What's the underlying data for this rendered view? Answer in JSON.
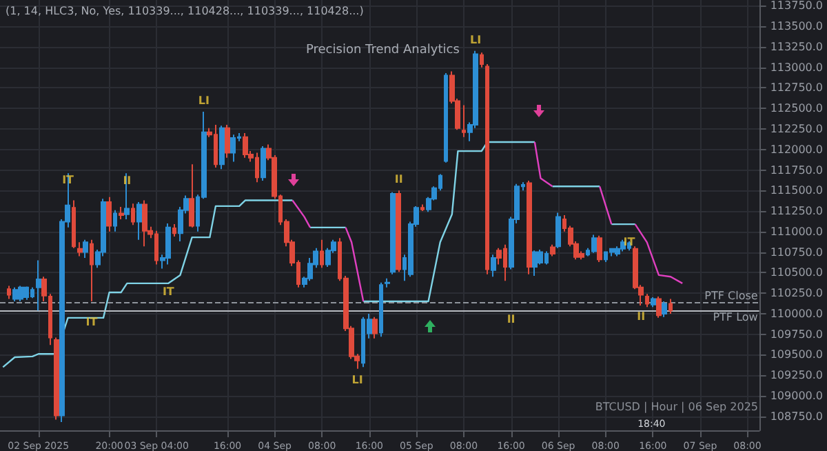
{
  "chart_data": {
    "type": "candlestick",
    "subtitle": "Precision Trend Analytics",
    "x": [
      "2025-09-02T03:00",
      "2025-09-02T04:00",
      "2025-09-02T05:00",
      "2025-09-02T06:00",
      "2025-09-02T07:00",
      "2025-09-02T08:00",
      "2025-09-02T09:00",
      "2025-09-02T10:00",
      "2025-09-02T11:00",
      "2025-09-02T12:00",
      "2025-09-02T13:00",
      "2025-09-02T14:00",
      "2025-09-02T15:00",
      "2025-09-02T16:00",
      "2025-09-02T17:00",
      "2025-09-02T18:00",
      "2025-09-02T19:00",
      "2025-09-02T20:00",
      "2025-09-02T21:00",
      "2025-09-02T22:00",
      "2025-09-02T23:00",
      "2025-09-03T00:00",
      "2025-09-03T01:00",
      "2025-09-03T02:00",
      "2025-09-03T03:00",
      "2025-09-03T04:00",
      "2025-09-03T05:00",
      "2025-09-03T06:00",
      "2025-09-03T07:00",
      "2025-09-03T08:00",
      "2025-09-03T09:00",
      "2025-09-03T10:00",
      "2025-09-03T11:00",
      "2025-09-03T12:00",
      "2025-09-03T13:00",
      "2025-09-03T14:00",
      "2025-09-03T15:00",
      "2025-09-03T16:00",
      "2025-09-03T17:00",
      "2025-09-03T18:00",
      "2025-09-03T19:00",
      "2025-09-03T20:00",
      "2025-09-03T21:00",
      "2025-09-03T22:00",
      "2025-09-03T23:00",
      "2025-09-04T00:00",
      "2025-09-04T01:00",
      "2025-09-04T02:00",
      "2025-09-04T03:00",
      "2025-09-04T04:00",
      "2025-09-04T05:00",
      "2025-09-04T06:00",
      "2025-09-04T07:00",
      "2025-09-04T08:00",
      "2025-09-04T09:00",
      "2025-09-04T10:00",
      "2025-09-04T11:00",
      "2025-09-04T12:00",
      "2025-09-04T13:00",
      "2025-09-04T14:00",
      "2025-09-04T15:00",
      "2025-09-04T16:00",
      "2025-09-04T17:00",
      "2025-09-04T18:00",
      "2025-09-04T19:00",
      "2025-09-04T20:00",
      "2025-09-04T21:00",
      "2025-09-04T22:00",
      "2025-09-04T23:00",
      "2025-09-05T00:00",
      "2025-09-05T01:00",
      "2025-09-05T02:00",
      "2025-09-05T03:00",
      "2025-09-05T04:00",
      "2025-09-05T05:00",
      "2025-09-05T06:00",
      "2025-09-05T07:00",
      "2025-09-05T08:00",
      "2025-09-05T09:00",
      "2025-09-05T10:00",
      "2025-09-05T11:00",
      "2025-09-05T12:00",
      "2025-09-05T13:00",
      "2025-09-05T14:00",
      "2025-09-05T15:00",
      "2025-09-05T16:00",
      "2025-09-05T17:00",
      "2025-09-05T18:00",
      "2025-09-05T19:00",
      "2025-09-05T20:00",
      "2025-09-05T21:00",
      "2025-09-05T22:00",
      "2025-09-05T23:00",
      "2025-09-06T00:00",
      "2025-09-06T01:00",
      "2025-09-06T02:00",
      "2025-09-06T03:00",
      "2025-09-06T04:00",
      "2025-09-06T05:00",
      "2025-09-06T06:00",
      "2025-09-06T07:00",
      "2025-09-06T08:00",
      "2025-09-06T09:00",
      "2025-09-06T10:00",
      "2025-09-06T11:00",
      "2025-09-06T12:00",
      "2025-09-06T13:00",
      "2025-09-06T14:00",
      "2025-09-06T15:00",
      "2025-09-06T16:00",
      "2025-09-06T17:00",
      "2025-09-06T18:00",
      "2025-09-06T19:00"
    ],
    "ohlc": [
      [
        110300,
        110340,
        110180,
        110230
      ],
      [
        110180,
        110320,
        110150,
        110290
      ],
      [
        110180,
        110340,
        110150,
        110320
      ],
      [
        110200,
        110330,
        110170,
        110320
      ],
      [
        110210,
        110320,
        110190,
        110290
      ],
      [
        110320,
        110650,
        110040,
        110420
      ],
      [
        110420,
        110450,
        110150,
        110220
      ],
      [
        110210,
        110240,
        109620,
        109710
      ],
      [
        109680,
        109710,
        108710,
        108760
      ],
      [
        108760,
        111150,
        108680,
        111120
      ],
      [
        111120,
        111710,
        111050,
        111320
      ],
      [
        111290,
        111380,
        110800,
        110820
      ],
      [
        110790,
        110870,
        110700,
        110750
      ],
      [
        110750,
        110900,
        110680,
        110870
      ],
      [
        110850,
        110900,
        110150,
        110600
      ],
      [
        110600,
        110780,
        110560,
        110750
      ],
      [
        110750,
        111400,
        110700,
        111360
      ],
      [
        111360,
        111420,
        111000,
        111070
      ],
      [
        111070,
        111260,
        111000,
        111220
      ],
      [
        111220,
        111300,
        111150,
        111200
      ],
      [
        111210,
        111710,
        111150,
        111280
      ],
      [
        111280,
        111340,
        111080,
        111120
      ],
      [
        111120,
        111360,
        110900,
        111330
      ],
      [
        111330,
        111380,
        110820,
        111010
      ],
      [
        111010,
        111060,
        110920,
        110970
      ],
      [
        110970,
        111010,
        110600,
        110650
      ],
      [
        110650,
        110720,
        110550,
        110680
      ],
      [
        110680,
        111100,
        110600,
        111050
      ],
      [
        111040,
        111090,
        110940,
        110980
      ],
      [
        110980,
        111300,
        110880,
        111260
      ],
      [
        111260,
        111440,
        111220,
        111400
      ],
      [
        111400,
        111820,
        111050,
        111070
      ],
      [
        111070,
        111450,
        111000,
        111420
      ],
      [
        111420,
        112460,
        111400,
        112210
      ],
      [
        112210,
        112260,
        112150,
        112180
      ],
      [
        112180,
        112300,
        111780,
        111820
      ],
      [
        111820,
        112290,
        111760,
        112260
      ],
      [
        112260,
        112300,
        111900,
        111960
      ],
      [
        111960,
        112180,
        111850,
        112140
      ],
      [
        112140,
        112200,
        112100,
        112150
      ],
      [
        112150,
        112200,
        111900,
        111940
      ],
      [
        111940,
        111980,
        111850,
        111900
      ],
      [
        111900,
        111960,
        111600,
        111660
      ],
      [
        111660,
        112040,
        111620,
        112010
      ],
      [
        112010,
        112060,
        111870,
        111900
      ],
      [
        111900,
        111930,
        111400,
        111430
      ],
      [
        111430,
        111450,
        111080,
        111120
      ],
      [
        111120,
        111150,
        110820,
        110870
      ],
      [
        110870,
        110900,
        110580,
        110620
      ],
      [
        110620,
        110650,
        110320,
        110360
      ],
      [
        110360,
        110450,
        110320,
        110430
      ],
      [
        110430,
        110680,
        110400,
        110610
      ],
      [
        110600,
        110800,
        110560,
        110760
      ],
      [
        110760,
        110900,
        110560,
        110600
      ],
      [
        110600,
        110800,
        110570,
        110770
      ],
      [
        110770,
        110900,
        110740,
        110870
      ],
      [
        110870,
        110920,
        110400,
        110430
      ],
      [
        110430,
        110460,
        109790,
        109820
      ],
      [
        109820,
        109850,
        109450,
        109480
      ],
      [
        109480,
        109510,
        109330,
        109430
      ],
      [
        109400,
        109960,
        109350,
        109930
      ],
      [
        109760,
        110000,
        109700,
        109930
      ],
      [
        109930,
        109960,
        109700,
        109760
      ],
      [
        109770,
        110380,
        109720,
        110350
      ],
      [
        110370,
        110430,
        110320,
        110380
      ],
      [
        110510,
        111480,
        110480,
        111460
      ],
      [
        111460,
        111500,
        110510,
        110540
      ],
      [
        110540,
        110720,
        110400,
        110680
      ],
      [
        110480,
        111120,
        110450,
        111090
      ],
      [
        111090,
        111310,
        111060,
        111290
      ],
      [
        111290,
        111330,
        111250,
        111270
      ],
      [
        111270,
        111420,
        111240,
        111400
      ],
      [
        111400,
        111550,
        111380,
        111530
      ],
      [
        111530,
        111700,
        111500,
        111680
      ],
      [
        111860,
        112930,
        111840,
        112900
      ],
      [
        112900,
        112950,
        112560,
        112590
      ],
      [
        112590,
        112620,
        112240,
        112260
      ],
      [
        112230,
        112540,
        112150,
        112210
      ],
      [
        112210,
        112330,
        112100,
        112300
      ],
      [
        112300,
        113200,
        112260,
        113160
      ],
      [
        113150,
        113180,
        113000,
        113040
      ],
      [
        113010,
        113040,
        110480,
        110540
      ],
      [
        110530,
        110720,
        110450,
        110680
      ],
      [
        110770,
        110800,
        110600,
        110680
      ],
      [
        110790,
        110840,
        110400,
        110570
      ],
      [
        110570,
        111180,
        110540,
        111150
      ],
      [
        111150,
        111580,
        111100,
        111550
      ],
      [
        111550,
        111600,
        111500,
        111570
      ],
      [
        111590,
        111620,
        110480,
        110570
      ],
      [
        110570,
        110770,
        110460,
        110750
      ],
      [
        110620,
        110780,
        110600,
        110750
      ],
      [
        110620,
        110760,
        110600,
        110730
      ],
      [
        110810,
        110840,
        110700,
        110730
      ],
      [
        110820,
        111230,
        110800,
        111180
      ],
      [
        111150,
        111200,
        111000,
        111040
      ],
      [
        111040,
        111070,
        110820,
        110850
      ],
      [
        110850,
        110880,
        110660,
        110690
      ],
      [
        110730,
        110760,
        110660,
        110690
      ],
      [
        110720,
        110800,
        110700,
        110770
      ],
      [
        110760,
        110960,
        110740,
        110920
      ],
      [
        110920,
        110950,
        110630,
        110660
      ],
      [
        110660,
        110760,
        110630,
        110750
      ],
      [
        110750,
        110800,
        110700,
        110790
      ],
      [
        110730,
        110820,
        110700,
        110790
      ],
      [
        110790,
        110900,
        110760,
        110870
      ],
      [
        110800,
        110880,
        110770,
        110860
      ],
      [
        110790,
        110820,
        110300,
        110320
      ],
      [
        110320,
        110350,
        110100,
        110230
      ],
      [
        110210,
        110240,
        110080,
        110120
      ],
      [
        110110,
        110200,
        110080,
        110180
      ],
      [
        110180,
        110210,
        109950,
        109980
      ],
      [
        110000,
        110150,
        109960,
        110120
      ],
      [
        110120,
        110180,
        110000,
        110040
      ]
    ],
    "colors": [
      "#e04b3c",
      "#2d8fd5",
      "#2d8fd5",
      "#2d8fd5",
      "#2d8fd5",
      "#2d8fd5",
      "#e04b3c",
      "#e04b3c",
      "#e04b3c",
      "#2d8fd5",
      "#2d8fd5",
      "#e04b3c",
      "#e04b3c",
      "#2d8fd5",
      "#e04b3c",
      "#2d8fd5",
      "#2d8fd5",
      "#e04b3c",
      "#2d8fd5",
      "#e04b3c",
      "#2d8fd5",
      "#e04b3c",
      "#2d8fd5",
      "#e04b3c",
      "#e04b3c",
      "#e04b3c",
      "#2d8fd5",
      "#2d8fd5",
      "#e04b3c",
      "#2d8fd5",
      "#2d8fd5",
      "#e04b3c",
      "#2d8fd5",
      "#2d8fd5",
      "#e04b3c",
      "#e04b3c",
      "#2d8fd5",
      "#e04b3c",
      "#2d8fd5",
      "#2d8fd5",
      "#e04b3c",
      "#e04b3c",
      "#e04b3c",
      "#2d8fd5",
      "#e04b3c",
      "#e04b3c",
      "#e04b3c",
      "#e04b3c",
      "#e04b3c",
      "#e04b3c",
      "#2d8fd5",
      "#2d8fd5",
      "#2d8fd5",
      "#e04b3c",
      "#2d8fd5",
      "#2d8fd5",
      "#e04b3c",
      "#e04b3c",
      "#e04b3c",
      "#e04b3c",
      "#2d8fd5",
      "#2d8fd5",
      "#e04b3c",
      "#2d8fd5",
      "#2d8fd5",
      "#2d8fd5",
      "#e04b3c",
      "#2d8fd5",
      "#2d8fd5",
      "#2d8fd5",
      "#e04b3c",
      "#2d8fd5",
      "#2d8fd5",
      "#2d8fd5",
      "#2d8fd5",
      "#e04b3c",
      "#e04b3c",
      "#e04b3c",
      "#2d8fd5",
      "#2d8fd5",
      "#e04b3c",
      "#e04b3c",
      "#2d8fd5",
      "#e04b3c",
      "#e04b3c",
      "#2d8fd5",
      "#2d8fd5",
      "#2d8fd5",
      "#e04b3c",
      "#2d8fd5",
      "#2d8fd5",
      "#2d8fd5",
      "#e04b3c",
      "#2d8fd5",
      "#e04b3c",
      "#e04b3c",
      "#e04b3c",
      "#e04b3c",
      "#2d8fd5",
      "#2d8fd5",
      "#e04b3c",
      "#2d8fd5",
      "#2d8fd5",
      "#2d8fd5",
      "#2d8fd5",
      "#2d8fd5",
      "#e04b3c",
      "#e04b3c",
      "#e04b3c",
      "#2d8fd5",
      "#e04b3c",
      "#2d8fd5",
      "#e04b3c"
    ],
    "series": [
      {
        "type": "line",
        "color": "#7fd3e6",
        "x": [
          "2025-09-02T02:00",
          "2025-09-02T04:00",
          "2025-09-02T07:00",
          "2025-09-02T08:00",
          "2025-09-02T11:00",
          "2025-09-02T13:00",
          "2025-09-02T19:00",
          "2025-09-02T20:00",
          "2025-09-02T22:00",
          "2025-09-02T23:00",
          "2025-09-03T06:00",
          "2025-09-03T08:00",
          "2025-09-03T10:00",
          "2025-09-03T13:00",
          "2025-09-03T14:00",
          "2025-09-03T18:00",
          "2025-09-03T19:00",
          "2025-09-04T03:00",
          "2025-09-04T04:00",
          "2025-09-04T06:00",
          "2025-09-04T12:00",
          "2025-09-04T13:00",
          "2025-09-04T15:00",
          "2025-09-05T02:00",
          "2025-09-05T04:00",
          "2025-09-05T06:00",
          "2025-09-05T07:00",
          "2025-09-05T11:00",
          "2025-09-05T12:00",
          "2025-09-05T20:00",
          "2025-09-05T21:00",
          "2025-09-05T23:00",
          "2025-09-06T07:00",
          "2025-09-06T08:00",
          "2025-09-06T09:00",
          "2025-09-06T13:00"
        ],
        "values": [
          109350,
          109470,
          109480,
          109510,
          109510,
          109950,
          109950,
          110260,
          110260,
          110370,
          110370,
          110470,
          110930,
          110930,
          111310,
          111310,
          111380,
          111380,
          null,
          111050,
          111050,
          null,
          110150,
          110150,
          110870,
          111210,
          111980,
          111980,
          112090,
          112090,
          null,
          111550,
          111550,
          null,
          111090,
          111090
        ]
      },
      {
        "type": "line",
        "color": "#e040c0",
        "x": [
          "2025-09-04T03:00",
          "2025-09-04T05:00",
          "2025-09-04T06:00",
          "2025-09-04T09:00",
          "2025-09-04T12:00",
          "2025-09-04T13:00",
          "2025-09-04T15:00",
          "2025-09-05T01:00",
          "2025-09-05T20:00",
          "2025-09-05T21:00",
          "2025-09-05T23:00",
          "2025-09-06T02:00",
          "2025-09-06T07:00",
          "2025-09-06T09:00",
          "2025-09-06T11:00",
          "2025-09-06T13:00",
          "2025-09-06T15:00",
          "2025-09-06T17:00",
          "2025-09-06T19:00",
          "2025-09-06T21:00"
        ],
        "values": [
          111380,
          111180,
          111050,
          null,
          111050,
          110870,
          110150,
          null,
          112090,
          111650,
          111550,
          null,
          111550,
          111090,
          null,
          111090,
          110870,
          110470,
          110450,
          110370
        ]
      }
    ],
    "ref_lines": [
      {
        "axis": "y",
        "value": 110130,
        "label": "PTF Close",
        "color": "#8f949c",
        "line_style": "dashed"
      },
      {
        "axis": "y",
        "value": 110040,
        "label": "PTF Low",
        "color": "#b8bcc2",
        "line_style": "solid"
      }
    ],
    "annotations": [
      "(1, 14, HLC3, No, Yes, 110339..., 110428..., 110339..., 110428...)",
      "BTCUSD | Hour | 06 Sep 2025",
      "18:40",
      {
        "text": "IT",
        "x": "2025-09-02T13:00",
        "y": 111630
      },
      {
        "text": "IT",
        "x": "2025-09-02T17:00",
        "y": 110030
      },
      {
        "text": "II",
        "x": "2025-09-02T23:00",
        "y": 111620
      },
      {
        "text": "IT",
        "x": "2025-09-03T06:00",
        "y": 110400
      },
      {
        "text": "LI",
        "x": "2025-09-03T12:00",
        "y": 112460
      },
      {
        "text": "LI",
        "x": "2025-09-04T14:00",
        "y": 109330
      },
      {
        "text": "II",
        "x": "2025-09-04T21:00",
        "y": 111500
      },
      {
        "text": "LI",
        "x": "2025-09-05T10:00",
        "y": 113200
      },
      {
        "text": "II",
        "x": "2025-09-05T16:00",
        "y": 110070
      },
      {
        "text": "IT",
        "x": "2025-09-06T12:00",
        "y": 110870
      },
      {
        "text": "II",
        "x": "2025-09-06T14:00",
        "y": 110100
      }
    ],
    "xlim": [
      "2025-09-02T01:30",
      "2025-09-07T10:00"
    ],
    "xticks": [
      {
        "value": "2025-09-02T08:00",
        "label": "02 Sep 2025"
      },
      {
        "value": "2025-09-02T20:00",
        "label": "20:00"
      },
      {
        "value": "2025-09-03T04:00",
        "label": "03 Sep 04:00"
      },
      {
        "value": "2025-09-03T16:00",
        "label": "16:00"
      },
      {
        "value": "2025-09-04T00:00",
        "label": "04 Sep"
      },
      {
        "value": "2025-09-04T08:00",
        "label": "08:00"
      },
      {
        "value": "2025-09-04T16:00",
        "label": "16:00"
      },
      {
        "value": "2025-09-05T00:00",
        "label": "05 Sep"
      },
      {
        "value": "2025-09-05T08:00",
        "label": "08:00"
      },
      {
        "value": "2025-09-05T16:00",
        "label": "16:00"
      },
      {
        "value": "2025-09-06T00:00",
        "label": "06 Sep"
      },
      {
        "value": "2025-09-06T08:00",
        "label": "08:00"
      },
      {
        "value": "2025-09-06T16:00",
        "label": "16:00"
      },
      {
        "value": "2025-09-07T00:00",
        "label": "07 Sep"
      },
      {
        "value": "2025-09-07T08:00",
        "label": "08:00"
      }
    ],
    "ylim": [
      108580,
      113820
    ],
    "yticks": [
      {
        "value": 108750,
        "label": "108750.0"
      },
      {
        "value": 109000,
        "label": "109000.0"
      },
      {
        "value": 109250,
        "label": "109250.0"
      },
      {
        "value": 109500,
        "label": "109500.0"
      },
      {
        "value": 109750,
        "label": "109750.0"
      },
      {
        "value": 110000,
        "label": "110000.0"
      },
      {
        "value": 110250,
        "label": "110250.0"
      },
      {
        "value": 110500,
        "label": "110500.0"
      },
      {
        "value": 110750,
        "label": "110750.0"
      },
      {
        "value": 111000,
        "label": "111000.0"
      },
      {
        "value": 111250,
        "label": "111250.0"
      },
      {
        "value": 111500,
        "label": "111500.0"
      },
      {
        "value": 111750,
        "label": "111750.0"
      },
      {
        "value": 112000,
        "label": "112000.0"
      },
      {
        "value": 112250,
        "label": "112250.0"
      },
      {
        "value": 112500,
        "label": "112500.0"
      },
      {
        "value": 112750,
        "label": "112750.0"
      },
      {
        "value": 113000,
        "label": "113000.0"
      },
      {
        "value": 113250,
        "label": "113250.0"
      },
      {
        "value": 113500,
        "label": "113500.0"
      },
      {
        "value": 113750,
        "label": "113750.0"
      }
    ],
    "grid": true
  }
}
